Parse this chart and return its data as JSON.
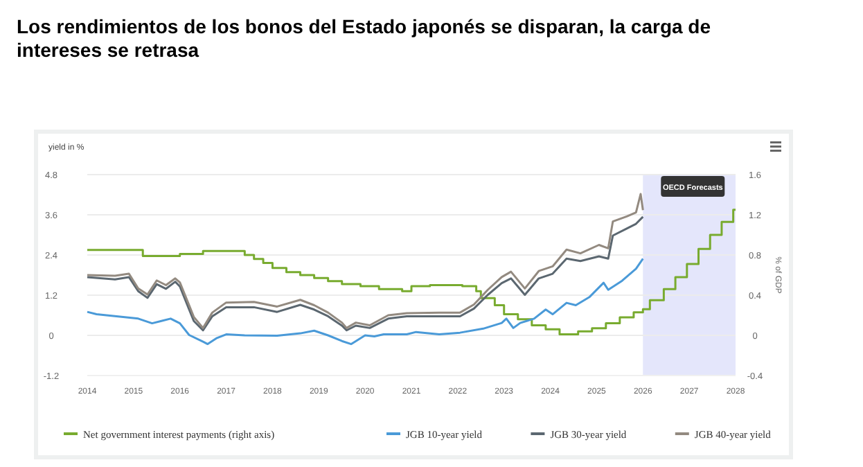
{
  "chart_data": {
    "type": "line",
    "title": "Los rendimientos de los bonos del Estado japonés se disparan, la carga de intereses se retrasa",
    "ylabel": "yield in %",
    "y2label": "% of GDP",
    "xlim": [
      2014,
      2028
    ],
    "xticks": [
      2014,
      2015,
      2016,
      2017,
      2018,
      2019,
      2020,
      2021,
      2022,
      2023,
      2024,
      2025,
      2026,
      2027,
      2028
    ],
    "ylim": [
      -1.2,
      4.8
    ],
    "yticks": [
      -1.2,
      0,
      1.2,
      2.4,
      3.6,
      4.8
    ],
    "y2lim": [
      -0.4,
      1.6
    ],
    "y2ticks": [
      -0.4,
      0,
      0.4,
      0.8,
      1.2,
      1.6
    ],
    "grid": "y",
    "legend": "bottom",
    "bands": [
      {
        "axis": "x",
        "from": 2026,
        "to": 2028,
        "label": "OECD Forecasts",
        "color": "#e4e6fb"
      }
    ],
    "series": [
      {
        "name": "Net government interest payments (right axis)",
        "type": "step",
        "axis": "y2",
        "color": "#78ab2f",
        "x": [
          2014,
          2015.2,
          2016,
          2016.5,
          2017.4,
          2017.6,
          2017.8,
          2018,
          2018.3,
          2018.6,
          2018.9,
          2019.2,
          2019.5,
          2019.9,
          2020.3,
          2020.8,
          2021,
          2021.4,
          2022.1,
          2022.4,
          2022.5,
          2022.8,
          2023,
          2023.3,
          2023.6,
          2023.9,
          2024.2,
          2024.6,
          2024.9,
          2025.2,
          2025.5,
          2025.8,
          2026,
          2026.15,
          2026.45,
          2026.7,
          2026.95,
          2027.2,
          2027.45,
          2027.7,
          2027.95,
          2028
        ],
        "values": [
          0.85,
          0.79,
          0.81,
          0.84,
          0.8,
          0.76,
          0.72,
          0.67,
          0.63,
          0.6,
          0.57,
          0.54,
          0.51,
          0.49,
          0.46,
          0.44,
          0.49,
          0.5,
          0.49,
          0.44,
          0.37,
          0.3,
          0.21,
          0.16,
          0.1,
          0.06,
          0.01,
          0.04,
          0.07,
          0.12,
          0.18,
          0.23,
          0.26,
          0.35,
          0.46,
          0.58,
          0.71,
          0.86,
          1.0,
          1.13,
          1.25,
          1.25
        ]
      },
      {
        "name": "JGB 10-year yield",
        "type": "line",
        "color": "#4a9ad8",
        "x": [
          2014,
          2014.2,
          2015.1,
          2015.4,
          2015.6,
          2015.8,
          2016,
          2016.2,
          2016.5,
          2016.6,
          2016.8,
          2017,
          2017.4,
          2018.1,
          2018.6,
          2018.9,
          2019.2,
          2019.5,
          2019.7,
          2020,
          2020.2,
          2020.4,
          2020.9,
          2021.1,
          2021.6,
          2022.05,
          2022.55,
          2022.95,
          2023.05,
          2023.2,
          2023.35,
          2023.65,
          2023.9,
          2024.05,
          2024.35,
          2024.55,
          2024.85,
          2025.15,
          2025.25,
          2025.55,
          2025.85,
          2026
        ],
        "values": [
          0.7,
          0.63,
          0.5,
          0.36,
          0.43,
          0.5,
          0.36,
          0.01,
          -0.19,
          -0.26,
          -0.08,
          0.03,
          0,
          -0.01,
          0.06,
          0.14,
          0,
          -0.17,
          -0.26,
          0,
          -0.03,
          0.03,
          0.03,
          0.1,
          0.03,
          0.08,
          0.2,
          0.37,
          0.5,
          0.22,
          0.37,
          0.5,
          0.77,
          0.63,
          0.97,
          0.9,
          1.15,
          1.57,
          1.36,
          1.63,
          1.99,
          2.29
        ]
      },
      {
        "name": "JGB 30-year yield",
        "type": "line",
        "color": "#5b6770",
        "x": [
          2014,
          2014.6,
          2014.9,
          2015.1,
          2015.3,
          2015.5,
          2015.7,
          2015.9,
          2016,
          2016.2,
          2016.3,
          2016.5,
          2016.7,
          2017,
          2017.6,
          2018.1,
          2018.6,
          2018.9,
          2019.2,
          2019.5,
          2019.6,
          2019.8,
          2020.1,
          2020.5,
          2020.9,
          2021.6,
          2022.05,
          2022.35,
          2022.65,
          2022.95,
          2023.15,
          2023.45,
          2023.75,
          2024.05,
          2024.35,
          2024.65,
          2025.05,
          2025.25,
          2025.35,
          2025.65,
          2025.85,
          2026
        ],
        "values": [
          1.74,
          1.67,
          1.74,
          1.32,
          1.12,
          1.53,
          1.39,
          1.6,
          1.46,
          0.77,
          0.43,
          0.15,
          0.57,
          0.84,
          0.84,
          0.7,
          0.91,
          0.77,
          0.57,
          0.29,
          0.15,
          0.29,
          0.22,
          0.5,
          0.57,
          0.57,
          0.57,
          0.8,
          1.21,
          1.56,
          1.7,
          1.21,
          1.7,
          1.84,
          2.29,
          2.22,
          2.36,
          2.29,
          2.98,
          3.19,
          3.33,
          3.54
        ]
      },
      {
        "name": "JGB 40-year yield",
        "type": "line",
        "color": "#938a80",
        "x": [
          2014,
          2014.6,
          2014.9,
          2015.1,
          2015.3,
          2015.5,
          2015.7,
          2015.9,
          2016,
          2016.2,
          2016.3,
          2016.5,
          2016.7,
          2017,
          2017.6,
          2018.1,
          2018.6,
          2018.9,
          2019.2,
          2019.5,
          2019.6,
          2019.8,
          2020.1,
          2020.5,
          2020.9,
          2021.6,
          2022.05,
          2022.35,
          2022.65,
          2022.95,
          2023.15,
          2023.45,
          2023.75,
          2024.05,
          2024.35,
          2024.65,
          2025.05,
          2025.25,
          2025.35,
          2025.65,
          2025.85,
          2025.95,
          2026
        ],
        "values": [
          1.8,
          1.78,
          1.84,
          1.4,
          1.22,
          1.64,
          1.5,
          1.7,
          1.58,
          0.9,
          0.55,
          0.22,
          0.68,
          0.98,
          1,
          0.86,
          1.06,
          0.9,
          0.68,
          0.38,
          0.22,
          0.38,
          0.3,
          0.6,
          0.66,
          0.68,
          0.68,
          0.92,
          1.36,
          1.74,
          1.9,
          1.4,
          1.92,
          2.06,
          2.56,
          2.45,
          2.7,
          2.6,
          3.4,
          3.55,
          3.67,
          4.22,
          3.74
        ]
      }
    ]
  }
}
